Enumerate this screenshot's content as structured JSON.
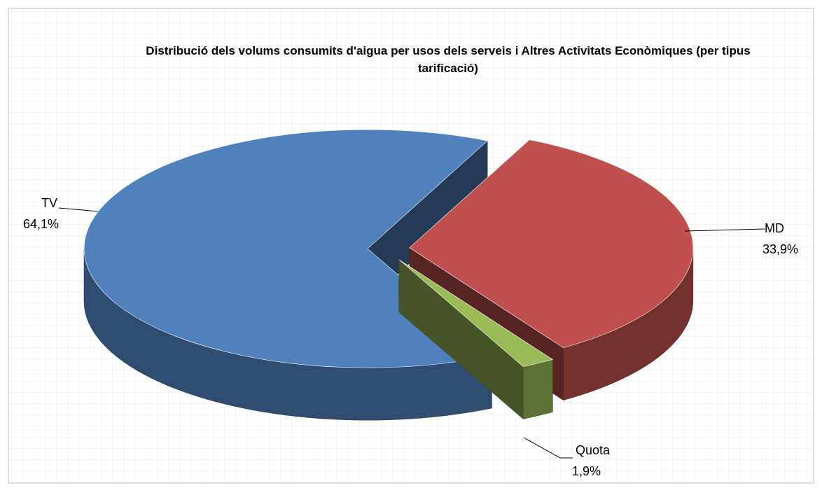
{
  "chart_data": {
    "type": "pie3d",
    "title": "Distribució dels volums consumits d'aigua per usos dels serveis i Altres Activitats Econòmiques (per tipus tarificació)",
    "categories": [
      "MD",
      "Quota",
      "TV"
    ],
    "values": [
      33.9,
      1.9,
      64.1
    ],
    "value_labels": [
      "33,9%",
      "1,9%",
      "64,1%"
    ],
    "colors": [
      "#c0504d",
      "#9bbb59",
      "#4f81bd"
    ]
  }
}
